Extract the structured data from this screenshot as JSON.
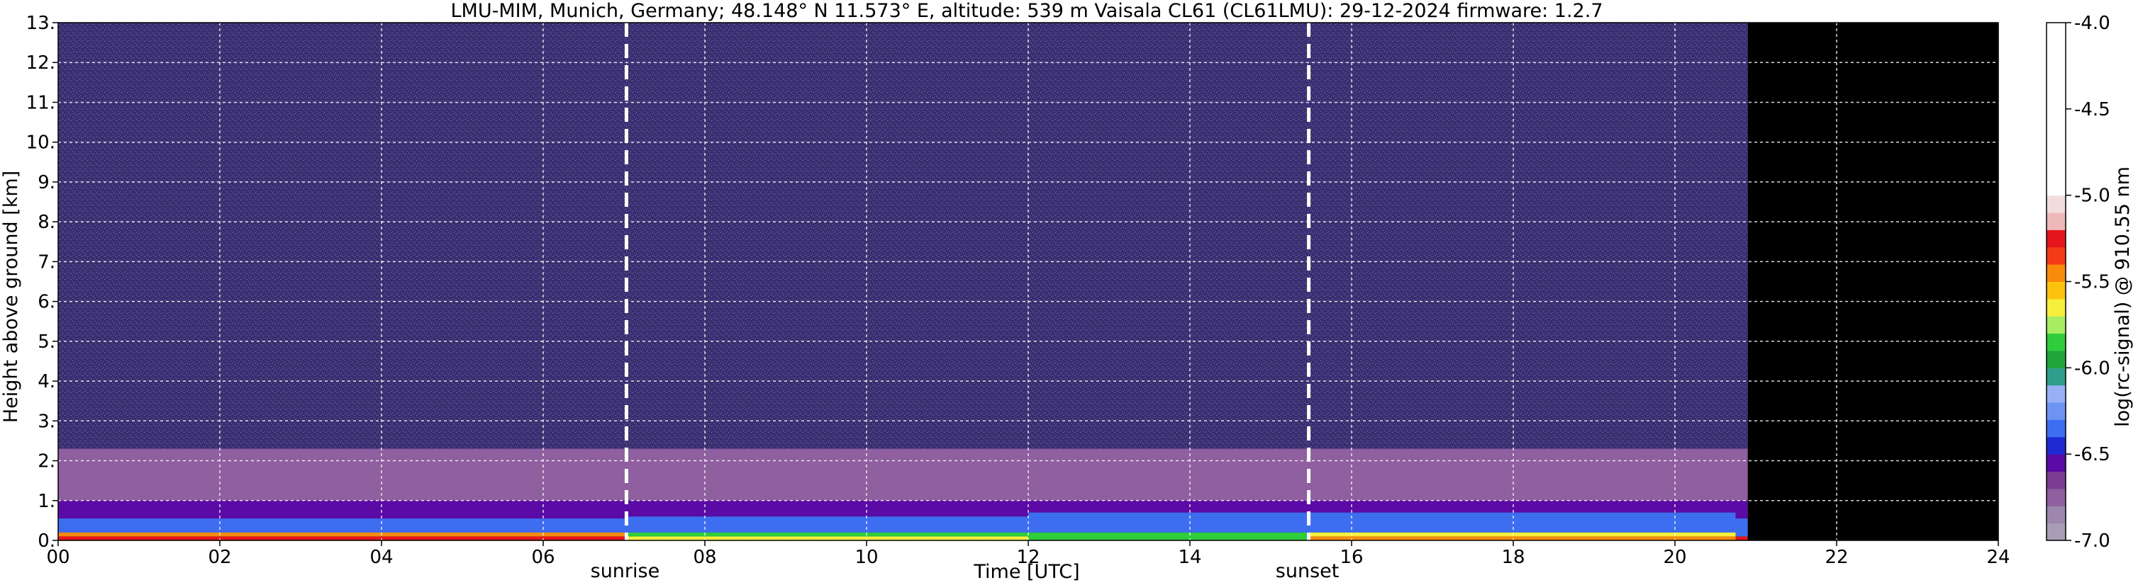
{
  "title": "LMU-MIM, Munich, Germany; 48.148° N 11.573° E, altitude: 539 m    Vaisala CL61 (CL61LMU): 29-12-2024    firmware: 1.2.7",
  "chart_data": {
    "type": "heatmap",
    "title": "LMU-MIM, Munich, Germany; 48.148° N 11.573° E, altitude: 539 m    Vaisala CL61 (CL61LMU): 29-12-2024    firmware: 1.2.7",
    "xlabel": "Time [UTC]",
    "ylabel": "Height above ground [km]",
    "xlim": [
      0,
      24
    ],
    "ylim": [
      0,
      13
    ],
    "x_ticks": [
      "00",
      "02",
      "04",
      "06",
      "08",
      "10",
      "12",
      "14",
      "16",
      "18",
      "20",
      "22",
      "24"
    ],
    "y_ticks": [
      "0.",
      "1.",
      "2.",
      "3.",
      "4.",
      "5.",
      "6.",
      "7.",
      "8.",
      "9.",
      "10.",
      "11.",
      "12.",
      "13."
    ],
    "grid": true,
    "annotations": [
      {
        "label": "sunrise",
        "x": 7.03
      },
      {
        "label": "sunset",
        "x": 15.47
      }
    ],
    "colorbar": {
      "label": "log(rc-signal) @ 910.55 nm",
      "range": [
        -7.0,
        -4.0
      ],
      "ticks": [
        "-4.0",
        "-4.5",
        "-5.0",
        "-5.5",
        "-6.0",
        "-6.5",
        "-7.0"
      ],
      "levels": [
        {
          "from": -7.0,
          "to": -6.9,
          "color": "#a79db4"
        },
        {
          "from": -6.9,
          "to": -6.8,
          "color": "#9c86ad"
        },
        {
          "from": -6.8,
          "to": -6.7,
          "color": "#8f5f9f"
        },
        {
          "from": -6.7,
          "to": -6.6,
          "color": "#7a3d93"
        },
        {
          "from": -6.6,
          "to": -6.5,
          "color": "#5b0aa5"
        },
        {
          "from": -6.5,
          "to": -6.4,
          "color": "#1e2bd2"
        },
        {
          "from": -6.4,
          "to": -6.3,
          "color": "#3d6ef0"
        },
        {
          "from": -6.3,
          "to": -6.2,
          "color": "#6e94f3"
        },
        {
          "from": -6.2,
          "to": -6.1,
          "color": "#98b0f5"
        },
        {
          "from": -6.1,
          "to": -6.0,
          "color": "#2f9e8a"
        },
        {
          "from": -6.0,
          "to": -5.9,
          "color": "#1fa53a"
        },
        {
          "from": -5.9,
          "to": -5.8,
          "color": "#2fcc3c"
        },
        {
          "from": -5.8,
          "to": -5.7,
          "color": "#a7ec63"
        },
        {
          "from": -5.7,
          "to": -5.6,
          "color": "#f6ef3b"
        },
        {
          "from": -5.6,
          "to": -5.5,
          "color": "#fbc30f"
        },
        {
          "from": -5.5,
          "to": -5.4,
          "color": "#f88b0b"
        },
        {
          "from": -5.4,
          "to": -5.3,
          "color": "#f33c17"
        },
        {
          "from": -5.3,
          "to": -5.2,
          "color": "#e4161b"
        },
        {
          "from": -5.2,
          "to": -5.1,
          "color": "#eeb8b8"
        },
        {
          "from": -5.1,
          "to": -5.0,
          "color": "#f2dcdc"
        },
        {
          "from": -5.0,
          "to": -4.0,
          "color": "#ffffff"
        }
      ]
    },
    "profile": [
      {
        "x": 0,
        "bg": "#3a2e70",
        "layers": [
          {
            "from": 0,
            "to": 0.1,
            "color": "#e4161b"
          },
          {
            "from": 0.1,
            "to": 0.2,
            "color": "#f88b0b"
          },
          {
            "from": 0.2,
            "to": 0.55,
            "color": "#3d6ef0"
          },
          {
            "from": 0.55,
            "to": 1.0,
            "color": "#5b0aa5"
          },
          {
            "from": 1.0,
            "to": 2.3,
            "color": "#8f5f9f"
          }
        ]
      },
      {
        "x": 7.03,
        "bg": "#3a2e70",
        "layers": [
          {
            "from": 0,
            "to": 0.1,
            "color": "#f6ef3b"
          },
          {
            "from": 0.1,
            "to": 0.2,
            "color": "#2fcc3c"
          },
          {
            "from": 0.2,
            "to": 0.6,
            "color": "#3d6ef0"
          },
          {
            "from": 0.6,
            "to": 1.0,
            "color": "#5b0aa5"
          },
          {
            "from": 1.0,
            "to": 2.3,
            "color": "#8f5f9f"
          }
        ]
      },
      {
        "x": 12,
        "bg": "#3a2e70",
        "layers": [
          {
            "from": 0,
            "to": 0.2,
            "color": "#2fcc3c"
          },
          {
            "from": 0.2,
            "to": 0.7,
            "color": "#3d6ef0"
          },
          {
            "from": 0.7,
            "to": 1.0,
            "color": "#5b0aa5"
          },
          {
            "from": 1.0,
            "to": 2.3,
            "color": "#8f5f9f"
          }
        ]
      },
      {
        "x": 15.47,
        "bg": "#3a2e70",
        "layers": [
          {
            "from": 0,
            "to": 0.1,
            "color": "#f88b0b"
          },
          {
            "from": 0.1,
            "to": 0.2,
            "color": "#f6ef3b"
          },
          {
            "from": 0.2,
            "to": 0.7,
            "color": "#3d6ef0"
          },
          {
            "from": 0.7,
            "to": 1.0,
            "color": "#5b0aa5"
          },
          {
            "from": 1.0,
            "to": 2.3,
            "color": "#8f5f9f"
          }
        ]
      },
      {
        "x": 20.75,
        "bg": "#3a2e70",
        "layers": [
          {
            "from": 0,
            "to": 0.1,
            "color": "#e4161b"
          },
          {
            "from": 0.1,
            "to": 0.55,
            "color": "#3d6ef0"
          },
          {
            "from": 0.55,
            "to": 1.0,
            "color": "#5b0aa5"
          },
          {
            "from": 1.0,
            "to": 2.3,
            "color": "#8f5f9f"
          }
        ]
      },
      {
        "x": 20.9,
        "bg": "#000000",
        "layers": []
      }
    ]
  }
}
